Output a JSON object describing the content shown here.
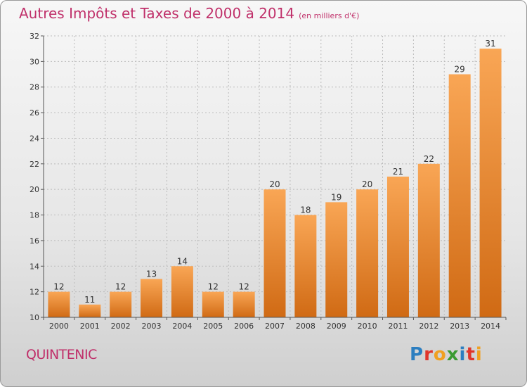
{
  "header": {
    "title": "Autres Impôts et Taxes de 2000 à 2014",
    "subtitle": "(en milliers d'€)"
  },
  "footer": {
    "commune": "QUINTENIC",
    "brand": "Proxiti",
    "brand_colors": [
      "#2c7ec0",
      "#e0352b",
      "#f0a020",
      "#3a9a30",
      "#2c7ec0",
      "#e0352b",
      "#f0a020"
    ]
  },
  "colors": {
    "bar_light": "#f9a655",
    "bar_dark": "#d06a14",
    "axis": "#555555",
    "grid": "#bbbbbb",
    "label": "#333333"
  },
  "chart_data": {
    "type": "bar",
    "categories": [
      "2000",
      "2001",
      "2002",
      "2003",
      "2004",
      "2005",
      "2006",
      "2007",
      "2008",
      "2009",
      "2010",
      "2011",
      "2012",
      "2013",
      "2014"
    ],
    "values": [
      12,
      11,
      12,
      13,
      14,
      12,
      12,
      20,
      18,
      19,
      20,
      21,
      22,
      29,
      31
    ],
    "title": "Autres Impôts et Taxes de 2000 à 2014",
    "xlabel": "",
    "ylabel": "",
    "ylim": [
      10,
      32
    ],
    "yticks": [
      10,
      12,
      14,
      16,
      18,
      20,
      22,
      24,
      26,
      28,
      30,
      32
    ],
    "grid": true,
    "data_labels": true
  }
}
